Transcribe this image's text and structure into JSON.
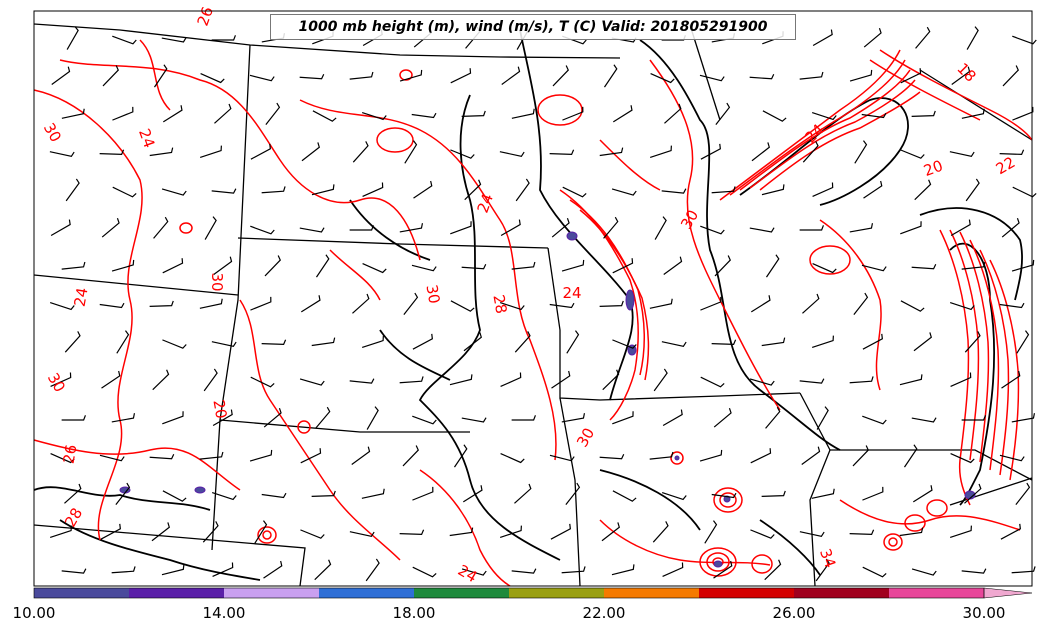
{
  "title": "1000 mb height (m), wind (m/s), T (C) Valid: 201805291900",
  "colorbar": {
    "tick_labels": [
      "10.00",
      "14.00",
      "18.00",
      "22.00",
      "26.00",
      "30.00"
    ],
    "colors": [
      "#4a4a9c",
      "#5a1fa8",
      "#c9a0f0",
      "#2f6fd6",
      "#1e8a3c",
      "#9aa012",
      "#f57a00",
      "#d40000",
      "#a0001e",
      "#e8469a",
      "#f0a8d0"
    ]
  },
  "contour_labels": [
    {
      "text": "30",
      "rot": 60
    },
    {
      "text": "24",
      "rot": 70
    },
    {
      "text": "26",
      "rot": -70
    },
    {
      "text": "30",
      "rot": 90
    },
    {
      "text": "24",
      "rot": -80
    },
    {
      "text": "30",
      "rot": 60
    },
    {
      "text": "28",
      "rot": 80
    },
    {
      "text": "24",
      "rot": 0
    },
    {
      "text": "30",
      "rot": 80
    },
    {
      "text": "30",
      "rot": -60
    },
    {
      "text": "24",
      "rot": -45
    },
    {
      "text": "18",
      "rot": 45
    },
    {
      "text": "20",
      "rot": -20
    },
    {
      "text": "22",
      "rot": -30
    },
    {
      "text": "30",
      "rot": -60
    },
    {
      "text": "24",
      "rot": 30
    },
    {
      "text": "34",
      "rot": 70
    },
    {
      "text": "28",
      "rot": -60
    },
    {
      "text": "20",
      "rot": 80
    },
    {
      "text": "26",
      "rot": -80
    },
    {
      "text": "24",
      "rot": -70
    }
  ]
}
